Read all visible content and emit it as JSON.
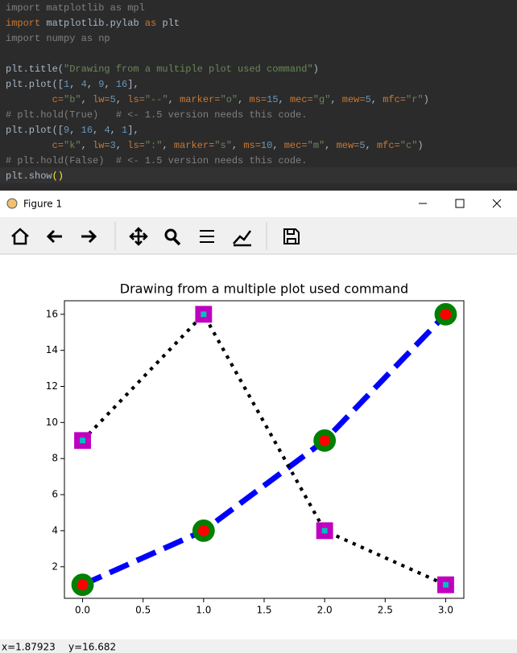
{
  "code": {
    "lines": [
      [
        {
          "text": "import matplotlib as mpl",
          "color": "#808080"
        }
      ],
      [
        {
          "text": "import",
          "color": "#cc7832"
        },
        {
          "text": " matplotlib.pylab ",
          "color": "#a9b7c6"
        },
        {
          "text": "as",
          "color": "#cc7832"
        },
        {
          "text": " plt",
          "color": "#a9b7c6"
        }
      ],
      [
        {
          "text": "import numpy as np",
          "color": "#808080"
        }
      ],
      [],
      [
        {
          "text": "plt.title(",
          "color": "#a9b7c6"
        },
        {
          "text": "\"Drawing from a multiple plot used command\"",
          "color": "#6a8759"
        },
        {
          "text": ")",
          "color": "#a9b7c6"
        }
      ],
      [
        {
          "text": "plt.plot([",
          "color": "#a9b7c6"
        },
        {
          "text": "1",
          "color": "#6897bb"
        },
        {
          "text": ", ",
          "color": "#a9b7c6"
        },
        {
          "text": "4",
          "color": "#6897bb"
        },
        {
          "text": ", ",
          "color": "#a9b7c6"
        },
        {
          "text": "9",
          "color": "#6897bb"
        },
        {
          "text": ", ",
          "color": "#a9b7c6"
        },
        {
          "text": "16",
          "color": "#6897bb"
        },
        {
          "text": "],",
          "color": "#a9b7c6"
        }
      ],
      [
        {
          "text": "        c=",
          "color": "#cc7832"
        },
        {
          "text": "\"b\"",
          "color": "#6a8759"
        },
        {
          "text": ", ",
          "color": "#a9b7c6"
        },
        {
          "text": "lw=",
          "color": "#cc7832"
        },
        {
          "text": "5",
          "color": "#6897bb"
        },
        {
          "text": ", ",
          "color": "#a9b7c6"
        },
        {
          "text": "ls=",
          "color": "#cc7832"
        },
        {
          "text": "\"--\"",
          "color": "#6a8759"
        },
        {
          "text": ", ",
          "color": "#a9b7c6"
        },
        {
          "text": "marker=",
          "color": "#cc7832"
        },
        {
          "text": "\"o\"",
          "color": "#6a8759"
        },
        {
          "text": ", ",
          "color": "#a9b7c6"
        },
        {
          "text": "ms=",
          "color": "#cc7832"
        },
        {
          "text": "15",
          "color": "#6897bb"
        },
        {
          "text": ", ",
          "color": "#a9b7c6"
        },
        {
          "text": "mec=",
          "color": "#cc7832"
        },
        {
          "text": "\"g\"",
          "color": "#6a8759"
        },
        {
          "text": ", ",
          "color": "#a9b7c6"
        },
        {
          "text": "mew=",
          "color": "#cc7832"
        },
        {
          "text": "5",
          "color": "#6897bb"
        },
        {
          "text": ", ",
          "color": "#a9b7c6"
        },
        {
          "text": "mfc=",
          "color": "#cc7832"
        },
        {
          "text": "\"r\"",
          "color": "#6a8759"
        },
        {
          "text": ")",
          "color": "#a9b7c6"
        }
      ],
      [
        {
          "text": "# plt.hold(True)   # <- 1.5 version needs this code.",
          "color": "#808080"
        }
      ],
      [
        {
          "text": "plt.plot([",
          "color": "#a9b7c6"
        },
        {
          "text": "9",
          "color": "#6897bb"
        },
        {
          "text": ", ",
          "color": "#a9b7c6"
        },
        {
          "text": "16",
          "color": "#6897bb"
        },
        {
          "text": ", ",
          "color": "#a9b7c6"
        },
        {
          "text": "4",
          "color": "#6897bb"
        },
        {
          "text": ", ",
          "color": "#a9b7c6"
        },
        {
          "text": "1",
          "color": "#6897bb"
        },
        {
          "text": "],",
          "color": "#a9b7c6"
        }
      ],
      [
        {
          "text": "        c=",
          "color": "#cc7832"
        },
        {
          "text": "\"k\"",
          "color": "#6a8759"
        },
        {
          "text": ", ",
          "color": "#a9b7c6"
        },
        {
          "text": "lw=",
          "color": "#cc7832"
        },
        {
          "text": "3",
          "color": "#6897bb"
        },
        {
          "text": ", ",
          "color": "#a9b7c6"
        },
        {
          "text": "ls=",
          "color": "#cc7832"
        },
        {
          "text": "\":\"",
          "color": "#6a8759"
        },
        {
          "text": ", ",
          "color": "#a9b7c6"
        },
        {
          "text": "marker=",
          "color": "#cc7832"
        },
        {
          "text": "\"s\"",
          "color": "#6a8759"
        },
        {
          "text": ", ",
          "color": "#a9b7c6"
        },
        {
          "text": "ms=",
          "color": "#cc7832"
        },
        {
          "text": "10",
          "color": "#6897bb"
        },
        {
          "text": ", ",
          "color": "#a9b7c6"
        },
        {
          "text": "mec=",
          "color": "#cc7832"
        },
        {
          "text": "\"m\"",
          "color": "#6a8759"
        },
        {
          "text": ", ",
          "color": "#a9b7c6"
        },
        {
          "text": "mew=",
          "color": "#cc7832"
        },
        {
          "text": "5",
          "color": "#6897bb"
        },
        {
          "text": ", ",
          "color": "#a9b7c6"
        },
        {
          "text": "mfc=",
          "color": "#cc7832"
        },
        {
          "text": "\"c\"",
          "color": "#6a8759"
        },
        {
          "text": ")",
          "color": "#a9b7c6"
        }
      ],
      [
        {
          "text": "# plt.hold(False)  # <- 1.5 version needs this code.",
          "color": "#808080"
        }
      ],
      [
        {
          "text": "plt.show",
          "color": "#a9b7c6"
        },
        {
          "text": "()",
          "color": "#ffef28"
        }
      ]
    ]
  },
  "window": {
    "title": "Figure 1",
    "status_x": "x=1.87923",
    "status_y": "y=16.682"
  },
  "chart_data": {
    "type": "line",
    "title": "Drawing from a multiple plot used command",
    "x": [
      0,
      1,
      2,
      3
    ],
    "series": [
      {
        "color": "#0000ff",
        "values": [
          1,
          4,
          9,
          16
        ],
        "line_width": 5,
        "line_style": "--",
        "marker": "o",
        "marker_size": 15,
        "marker_edge_color": "#008000",
        "marker_edge_width": 5,
        "marker_face_color": "#ff0000"
      },
      {
        "color": "#000000",
        "values": [
          9,
          16,
          4,
          1
        ],
        "line_width": 3,
        "line_style": ":",
        "marker": "s",
        "marker_size": 10,
        "marker_edge_color": "#bf00bf",
        "marker_edge_width": 5,
        "marker_face_color": "#00bfbf"
      }
    ],
    "xlim": [
      -0.15,
      3.15
    ],
    "ylim": [
      0.25,
      16.75
    ],
    "xticks": [
      {
        "value": 0,
        "label": "0.0"
      },
      0.5,
      {
        "value": 1,
        "label": "1.0"
      },
      1.5,
      {
        "value": 2,
        "label": "2.0"
      },
      2.5,
      {
        "value": 3,
        "label": "3.0"
      }
    ],
    "yticks": [
      2,
      4,
      6,
      8,
      10,
      12,
      14,
      16
    ]
  }
}
